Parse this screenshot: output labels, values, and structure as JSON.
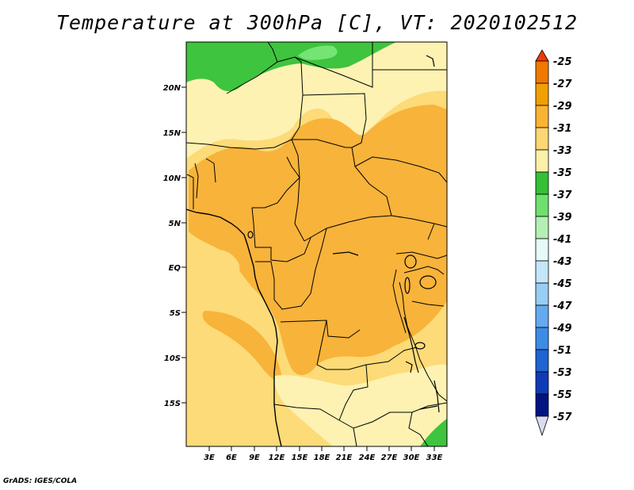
{
  "title": "Temperature at 300hPa [C], VT: 2020102512",
  "credit": "GrADS: IGES/COLA",
  "map": {
    "lat_labels": [
      "20N",
      "15N",
      "10N",
      "5N",
      "EQ",
      "5S",
      "10S",
      "15S"
    ],
    "lon_labels": [
      "3E",
      "6E",
      "9E",
      "12E",
      "15E",
      "18E",
      "21E",
      "24E",
      "27E",
      "30E",
      "33E"
    ]
  },
  "colorbar": {
    "levels": [
      "-25",
      "-27",
      "-29",
      "-31",
      "-33",
      "-35",
      "-37",
      "-39",
      "-41",
      "-43",
      "-45",
      "-47",
      "-49",
      "-51",
      "-53",
      "-55",
      "-57"
    ],
    "colors": [
      "#f03c00",
      "#f07800",
      "#f0a000",
      "#fab434",
      "#fcd772",
      "#fdf0a8",
      "#35c035",
      "#6ee06e",
      "#b4f0b4",
      "#e6fafa",
      "#c4e6fa",
      "#98cdf4",
      "#64aaf0",
      "#3c8ce6",
      "#1e64d2",
      "#0f3cb4",
      "#001482",
      "#dcdcf0"
    ]
  },
  "legend_palette": {
    "c29_31": "#f8b33a",
    "c31_33": "#fcdb78",
    "c33_35": "#fdf2b2",
    "c35_37": "#3ec43e",
    "c37_39": "#74e574"
  }
}
